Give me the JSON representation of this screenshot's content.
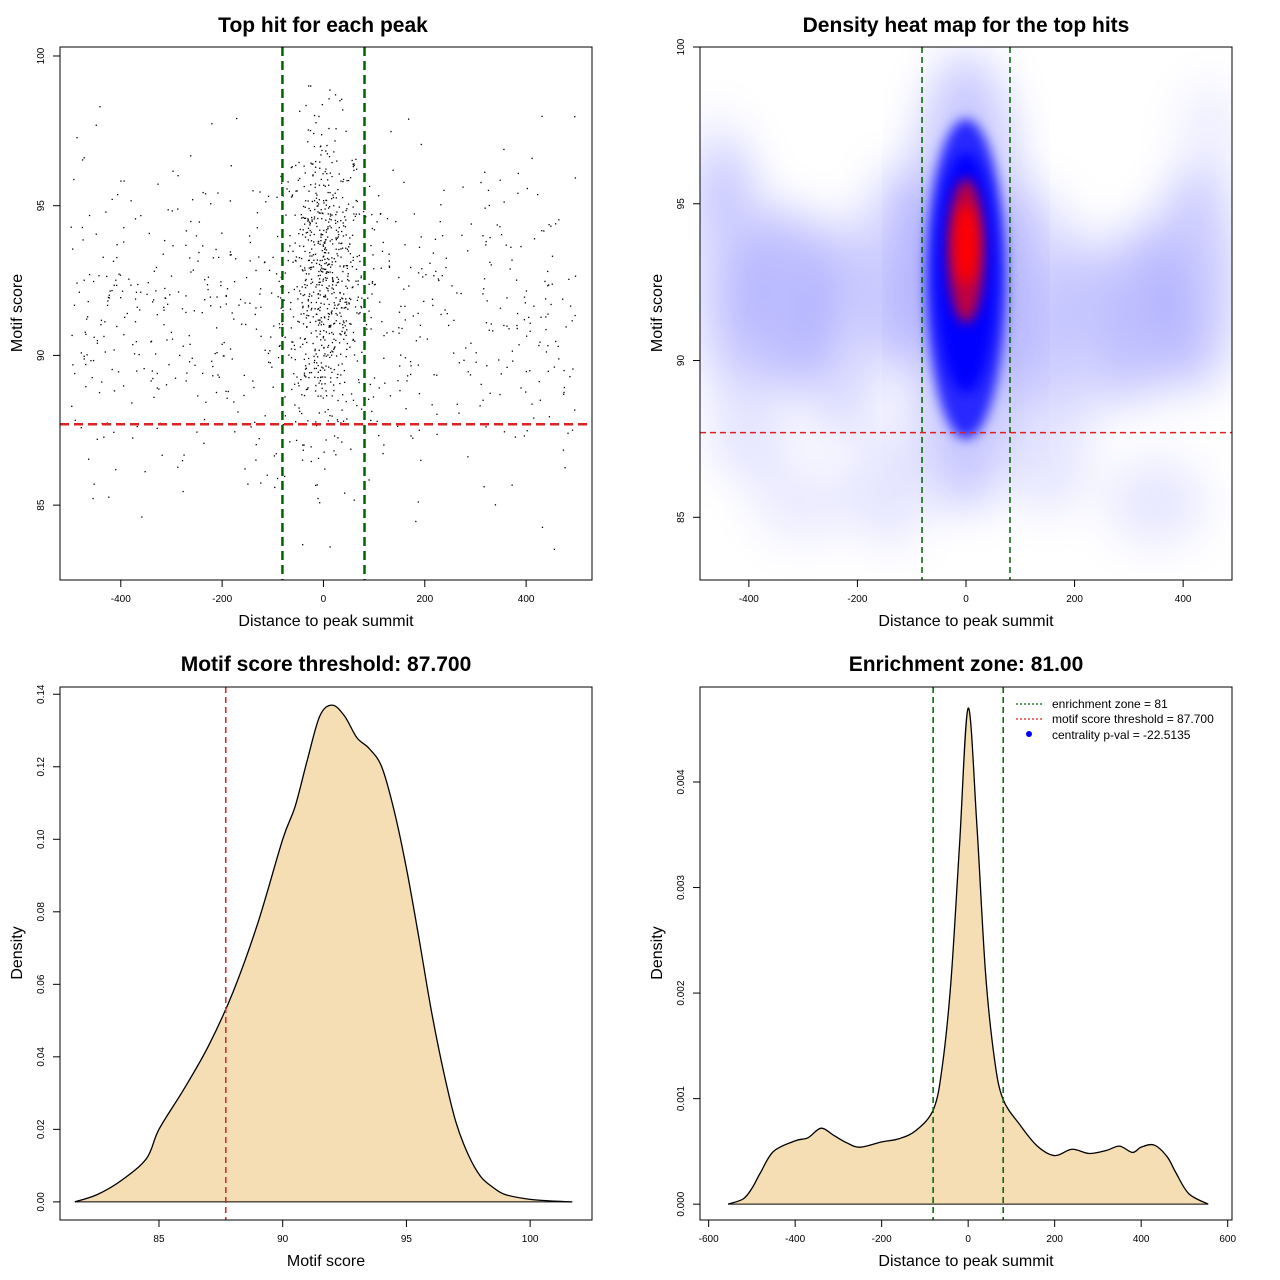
{
  "colors": {
    "zone_line": "#006400",
    "threshold_line": "#dd2222",
    "density_fill": "#f5deb3",
    "heat_low": "#ffffff",
    "heat_mid": "#0000ff",
    "heat_high": "#ff0000",
    "point": "#000000"
  },
  "chart_data": [
    {
      "type": "scatter",
      "title": "Top hit for each peak",
      "xlabel": "Distance to peak summit",
      "ylabel": "Motif score",
      "xlim": [
        -520,
        530
      ],
      "ylim": [
        82.5,
        100.3
      ],
      "xticks": [
        -400,
        -200,
        0,
        200,
        400
      ],
      "yticks": [
        85,
        90,
        95,
        100
      ],
      "vlines": [
        -81,
        81
      ],
      "hline": 87.7,
      "point_distribution": {
        "n_points": 1400,
        "x_range": [
          -500,
          500
        ],
        "central_fraction": 0.5,
        "central_x_sd": 40,
        "central_y_mean": 92.5,
        "central_y_sd": 2.6,
        "background_y_mean": 91.3,
        "background_y_sd": 2.8
      }
    },
    {
      "type": "heatmap",
      "title": "Density heat map for the top hits",
      "xlabel": "Distance to peak summit",
      "ylabel": "Motif score",
      "xlim": [
        -490,
        490
      ],
      "ylim": [
        83,
        100
      ],
      "xticks": [
        -400,
        -200,
        0,
        200,
        400
      ],
      "yticks": [
        85,
        90,
        95,
        100
      ],
      "vlines": [
        -81,
        81
      ],
      "hline": 87.7,
      "hotspot": {
        "x": 0,
        "y": 93.5
      }
    },
    {
      "type": "area",
      "title": "Motif score threshold: 87.700",
      "xlabel": "Motif score",
      "ylabel": "Density",
      "xlim": [
        81,
        102.5
      ],
      "ylim": [
        -0.005,
        0.142
      ],
      "xticks": [
        85,
        90,
        95,
        100
      ],
      "yticks": [
        0.0,
        0.02,
        0.04,
        0.06,
        0.08,
        0.1,
        0.12,
        0.14
      ],
      "ytick_labels": [
        "0.00",
        "0.02",
        "0.04",
        "0.06",
        "0.08",
        "0.10",
        "0.12",
        "0.14"
      ],
      "vline": 87.7,
      "x": [
        81.6,
        82.5,
        83.5,
        84.5,
        85.0,
        86.0,
        87.0,
        88.0,
        89.0,
        90.0,
        90.5,
        91.0,
        91.5,
        92.0,
        92.5,
        93.0,
        93.5,
        94.0,
        94.5,
        95.0,
        95.5,
        96.0,
        96.5,
        97.0,
        97.5,
        98.0,
        98.5,
        99.0,
        100.0,
        101.0,
        101.7
      ],
      "y": [
        0.0,
        0.002,
        0.006,
        0.012,
        0.02,
        0.031,
        0.043,
        0.058,
        0.077,
        0.1,
        0.109,
        0.122,
        0.134,
        0.137,
        0.134,
        0.128,
        0.125,
        0.12,
        0.108,
        0.092,
        0.073,
        0.053,
        0.036,
        0.022,
        0.013,
        0.007,
        0.004,
        0.002,
        0.0007,
        0.0002,
        0.0
      ]
    },
    {
      "type": "area",
      "title": "Enrichment zone: 81.00",
      "xlabel": "Distance to peak summit",
      "ylabel": "Density",
      "xlim": [
        -620,
        610
      ],
      "ylim": [
        -0.00015,
        0.0049
      ],
      "xticks": [
        -600,
        -400,
        -200,
        0,
        200,
        400,
        600
      ],
      "yticks": [
        0.0,
        0.001,
        0.002,
        0.003,
        0.004
      ],
      "ytick_labels": [
        "0.000",
        "0.001",
        "0.002",
        "0.003",
        "0.004"
      ],
      "vlines": [
        -81,
        81
      ],
      "x": [
        -555,
        -520,
        -500,
        -480,
        -450,
        -400,
        -370,
        -340,
        -310,
        -280,
        -250,
        -200,
        -160,
        -120,
        -80,
        -60,
        -40,
        -20,
        0,
        20,
        40,
        60,
        80,
        120,
        160,
        200,
        240,
        280,
        320,
        350,
        380,
        400,
        430,
        460,
        480,
        510,
        555
      ],
      "y": [
        0.0,
        5e-05,
        0.00015,
        0.0003,
        0.0005,
        0.0006,
        0.00063,
        0.00072,
        0.00065,
        0.00058,
        0.00054,
        0.00059,
        0.00062,
        0.0007,
        0.0009,
        0.0013,
        0.0021,
        0.0034,
        0.0047,
        0.0036,
        0.0022,
        0.0014,
        0.001,
        0.00075,
        0.00055,
        0.00046,
        0.00052,
        0.00048,
        0.00051,
        0.00055,
        0.00049,
        0.00054,
        0.00056,
        0.00045,
        0.0003,
        0.0001,
        0.0
      ],
      "legend": {
        "position": "top-right",
        "entries": [
          {
            "label": "enrichment zone = 81",
            "style": "dotted",
            "color": "#006400"
          },
          {
            "label": "motif score threshold = 87.700",
            "style": "dotted",
            "color": "#dd2222"
          },
          {
            "label": "centrality p-val = -22.5135",
            "style": "point",
            "color": "#0000ff"
          }
        ]
      }
    }
  ]
}
